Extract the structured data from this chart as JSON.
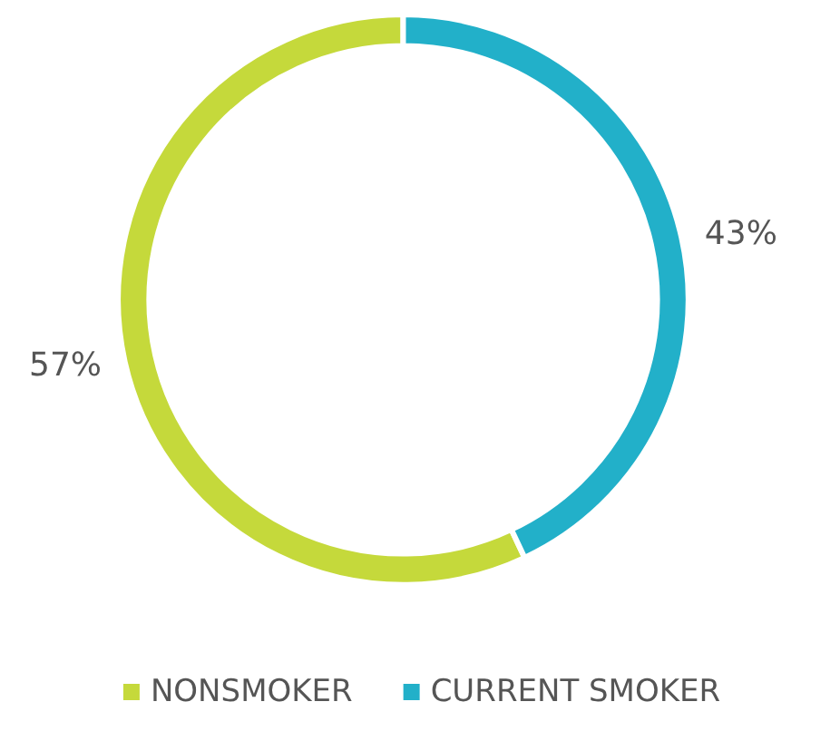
{
  "chart_data": {
    "type": "donut",
    "categories": [
      "NONSMOKER",
      "CURRENT SMOKER"
    ],
    "values": [
      57,
      43
    ],
    "colors": [
      "#c5d93b",
      "#22b0c9"
    ],
    "value_labels": [
      "57%",
      "43%"
    ],
    "legend": "bottom"
  }
}
